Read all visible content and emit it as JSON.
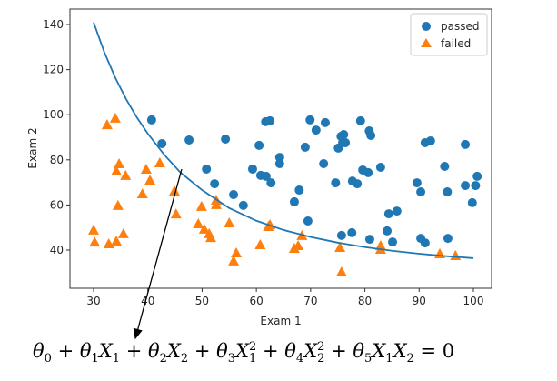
{
  "chart_data": {
    "type": "scatter",
    "title": "",
    "xlabel": "Exam 1",
    "ylabel": "Exam 2",
    "xlim": [
      26,
      104
    ],
    "ylim": [
      26,
      146
    ],
    "xticks": [
      30,
      40,
      50,
      60,
      70,
      80,
      90,
      100
    ],
    "yticks": [
      40,
      60,
      80,
      100,
      120,
      140
    ],
    "grid": false,
    "legend": {
      "placement": "top-right",
      "entries": [
        "passed",
        "failed"
      ]
    },
    "colors": {
      "passed": "#1f77b4",
      "failed": "#ff7f0e",
      "boundary": "#1f77b4",
      "arrow": "#000000"
    },
    "series": [
      {
        "name": "passed",
        "marker": "circle",
        "points": [
          [
            40.7,
            97.7
          ],
          [
            42.6,
            87.2
          ],
          [
            47.6,
            88.8
          ],
          [
            54.3,
            89.2
          ],
          [
            61.7,
            96.9
          ],
          [
            62.5,
            97.3
          ],
          [
            60.5,
            86.4
          ],
          [
            64.3,
            81.1
          ],
          [
            64.3,
            78.3
          ],
          [
            50.8,
            75.9
          ],
          [
            59.3,
            75.9
          ],
          [
            60.8,
            73.1
          ],
          [
            61.8,
            72.7
          ],
          [
            62.7,
            69.8
          ],
          [
            52.3,
            69.4
          ],
          [
            55.8,
            64.6
          ],
          [
            57.6,
            59.8
          ],
          [
            69.9,
            97.7
          ],
          [
            71.0,
            93.2
          ],
          [
            72.7,
            96.5
          ],
          [
            69.0,
            85.6
          ],
          [
            75.6,
            90.4
          ],
          [
            76.1,
            91.2
          ],
          [
            75.9,
            87.6
          ],
          [
            75.1,
            85.2
          ],
          [
            76.4,
            87.6
          ],
          [
            79.2,
            97.3
          ],
          [
            80.8,
            92.8
          ],
          [
            81.1,
            90.8
          ],
          [
            72.4,
            78.3
          ],
          [
            67.9,
            66.6
          ],
          [
            67.0,
            61.4
          ],
          [
            74.6,
            69.8
          ],
          [
            77.7,
            70.6
          ],
          [
            78.6,
            69.4
          ],
          [
            79.6,
            75.5
          ],
          [
            80.6,
            74.3
          ],
          [
            82.9,
            76.7
          ],
          [
            69.5,
            52.9
          ],
          [
            75.7,
            46.5
          ],
          [
            77.6,
            47.7
          ],
          [
            80.9,
            44.8
          ],
          [
            84.1,
            48.5
          ],
          [
            85.1,
            43.6
          ],
          [
            84.4,
            56.1
          ],
          [
            85.9,
            57.3
          ],
          [
            89.6,
            69.8
          ],
          [
            90.3,
            65.8
          ],
          [
            90.3,
            45.2
          ],
          [
            91.1,
            43.2
          ],
          [
            91.1,
            87.6
          ],
          [
            92.1,
            88.4
          ],
          [
            94.7,
            77.1
          ],
          [
            95.2,
            65.8
          ],
          [
            95.3,
            45.2
          ],
          [
            98.5,
            86.8
          ],
          [
            98.5,
            68.6
          ],
          [
            100.4,
            68.6
          ],
          [
            100.7,
            72.7
          ],
          [
            99.8,
            61.0
          ]
        ]
      },
      {
        "name": "failed",
        "marker": "triangle",
        "points": [
          [
            34.0,
            98.5
          ],
          [
            32.5,
            95.6
          ],
          [
            34.7,
            78.3
          ],
          [
            34.2,
            75.1
          ],
          [
            35.9,
            73.1
          ],
          [
            39.7,
            75.9
          ],
          [
            40.4,
            71.0
          ],
          [
            42.2,
            78.7
          ],
          [
            39.0,
            65.0
          ],
          [
            44.9,
            66.2
          ],
          [
            34.5,
            59.8
          ],
          [
            45.2,
            56.1
          ],
          [
            49.9,
            59.4
          ],
          [
            52.6,
            62.2
          ],
          [
            52.6,
            60.2
          ],
          [
            49.3,
            51.7
          ],
          [
            50.4,
            49.3
          ],
          [
            51.3,
            47.3
          ],
          [
            51.6,
            45.6
          ],
          [
            55.0,
            52.1
          ],
          [
            56.3,
            38.8
          ],
          [
            55.8,
            35.2
          ],
          [
            60.7,
            42.4
          ],
          [
            62.2,
            50.5
          ],
          [
            62.5,
            51.3
          ],
          [
            30.0,
            48.9
          ],
          [
            30.2,
            43.6
          ],
          [
            32.8,
            42.8
          ],
          [
            34.2,
            44.0
          ],
          [
            35.5,
            47.3
          ],
          [
            68.4,
            46.5
          ],
          [
            67.7,
            42.0
          ],
          [
            67.0,
            40.8
          ],
          [
            75.4,
            41.2
          ],
          [
            75.7,
            30.3
          ],
          [
            82.9,
            42.0
          ],
          [
            82.9,
            40.4
          ],
          [
            93.8,
            38.4
          ],
          [
            96.7,
            37.6
          ]
        ]
      }
    ],
    "boundary": {
      "name": "decision boundary",
      "x": [
        30,
        32,
        34,
        36,
        38,
        40,
        43,
        46,
        50,
        55,
        60,
        65,
        70,
        75,
        80,
        85,
        90,
        95,
        100
      ],
      "y": [
        141.0,
        127.6,
        116.4,
        106.9,
        98.7,
        91.6,
        82.3,
        74.4,
        66.6,
        58.6,
        53.0,
        48.9,
        45.8,
        43.3,
        41.3,
        39.7,
        38.4,
        37.3,
        36.4
      ]
    },
    "annotation": {
      "text": "θ0 + θ1X1 + θ2X2 + θ3X1^2 + θ4X2^2 + θ5X1X2 = 0",
      "points_to": [
        46,
        76
      ]
    }
  },
  "equation": {
    "t0": "θ",
    "s0": "0",
    "p1": " + ",
    "t1": "θ",
    "s1": "1",
    "x1": "X",
    "x1s": "1",
    "p2": " + ",
    "t2": "θ",
    "s2": "2",
    "x2": "X",
    "x2s": "2",
    "p3": " + ",
    "t3": "θ",
    "s3": "3",
    "x3": "X",
    "x3sup": "2",
    "x3s": "1",
    "p4": " + ",
    "t4": "θ",
    "s4": "4",
    "x4": "X",
    "x4sup": "2",
    "x4s": "2",
    "p5": " + ",
    "t5": "θ",
    "s5": "5",
    "x5a": "X",
    "x5as": "1",
    "x5b": "X",
    "x5bs": "2",
    "eq": " = 0"
  }
}
